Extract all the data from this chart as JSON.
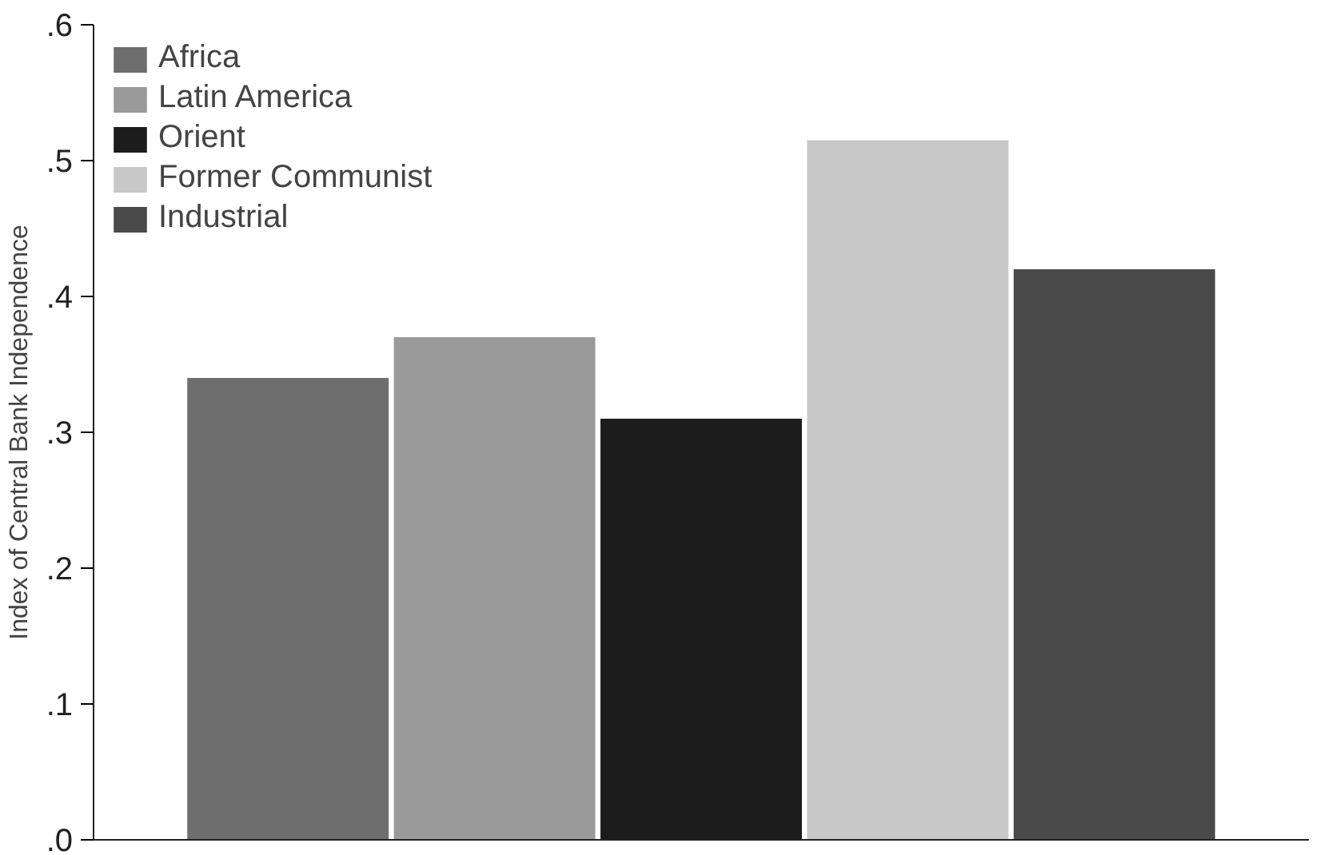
{
  "chart_data": {
    "type": "bar",
    "ylabel": "Index of Central Bank Independence",
    "categories": [
      null
    ],
    "series": [
      {
        "name": "Africa",
        "color": "#6e6e6e",
        "values": [
          0.34
        ]
      },
      {
        "name": "Latin America",
        "color": "#9a9a9a",
        "values": [
          0.37
        ]
      },
      {
        "name": "Orient",
        "color": "#1c1c1c",
        "values": [
          0.31
        ]
      },
      {
        "name": "Former Communist",
        "color": "#c8c8c8",
        "values": [
          0.515
        ]
      },
      {
        "name": "Industrial",
        "color": "#4a4a4a",
        "values": [
          0.42
        ]
      }
    ],
    "ylim": [
      0,
      0.6
    ],
    "yticks": [
      {
        "value": 0,
        "label": ".0"
      },
      {
        "value": 0.1,
        "label": ".1"
      },
      {
        "value": 0.2,
        "label": ".2"
      },
      {
        "value": 0.3,
        "label": ".3"
      },
      {
        "value": 0.4,
        "label": ".4"
      },
      {
        "value": 0.5,
        "label": ".5"
      },
      {
        "value": 0.6,
        "label": ".6"
      }
    ],
    "tick_labels": "y",
    "legend": "top left",
    "grid": false
  }
}
